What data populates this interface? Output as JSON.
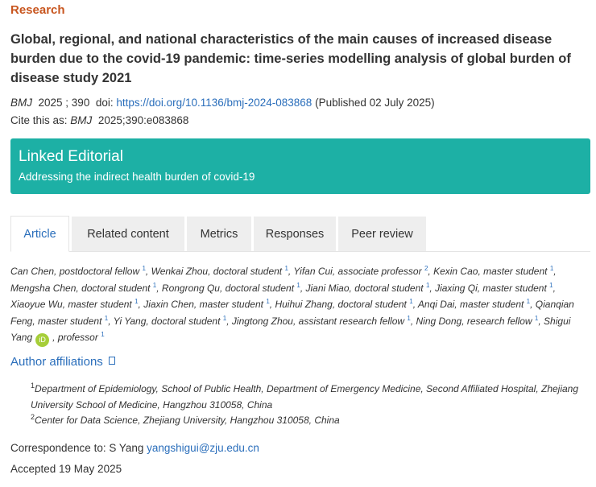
{
  "section": "Research",
  "title": "Global, regional, and national characteristics of the main causes of increased disease burden due to the covid-19 pandemic: time-series modelling analysis of global burden of disease study 2021",
  "citation": {
    "journal": "BMJ",
    "volume": "2025 ; 390",
    "doi_label": "doi:",
    "doi_url": "https://doi.org/10.1136/bmj-2024-083868",
    "published": "(Published 02 July 2025)",
    "cite_label": "Cite this as:",
    "cite_journal": "BMJ",
    "cite_ref": "2025;390:e083868"
  },
  "editorial": {
    "heading": "Linked Editorial",
    "link": "Addressing the indirect health burden of covid-19",
    "color": "#1db0a5"
  },
  "tabs": [
    {
      "label": "Article",
      "active": true
    },
    {
      "label": "Related content"
    },
    {
      "label": "Metrics"
    },
    {
      "label": "Responses"
    },
    {
      "label": "Peer review"
    }
  ],
  "authors": [
    {
      "name": "Can Chen",
      "role": "postdoctoral fellow",
      "aff": "1"
    },
    {
      "name": "Wenkai Zhou",
      "role": "doctoral student",
      "aff": "1"
    },
    {
      "name": "Yifan Cui",
      "role": "associate professor",
      "aff": "2"
    },
    {
      "name": "Kexin Cao",
      "role": "master student",
      "aff": "1"
    },
    {
      "name": "Mengsha Chen",
      "role": "doctoral student",
      "aff": "1"
    },
    {
      "name": "Rongrong Qu",
      "role": "doctoral student",
      "aff": "1"
    },
    {
      "name": "Jiani Miao",
      "role": "doctoral student",
      "aff": "1"
    },
    {
      "name": "Jiaxing Qi",
      "role": "master student",
      "aff": "1"
    },
    {
      "name": "Xiaoyue Wu",
      "role": "master student",
      "aff": "1"
    },
    {
      "name": "Jiaxin Chen",
      "role": "master student",
      "aff": "1"
    },
    {
      "name": "Huihui Zhang",
      "role": "doctoral student",
      "aff": "1"
    },
    {
      "name": "Anqi Dai",
      "role": "master student",
      "aff": "1"
    },
    {
      "name": "Qianqian Feng",
      "role": "master student",
      "aff": "1"
    },
    {
      "name": "Yi Yang",
      "role": "doctoral student",
      "aff": "1"
    },
    {
      "name": "Jingtong Zhou",
      "role": "assistant research fellow",
      "aff": "1"
    },
    {
      "name": "Ning Dong",
      "role": "research fellow",
      "aff": "1"
    },
    {
      "name": "Shigui Yang",
      "role": "professor",
      "aff": "1",
      "orcid": "iD"
    }
  ],
  "affiliations_heading": "Author affiliations",
  "affiliations_icon": "expand-square-icon",
  "affiliations": [
    {
      "num": "1",
      "text": "Department of Epidemiology, School of Public Health, Department of Emergency Medicine, Second Affiliated Hospital, Zhejiang University School of Medicine, Hangzhou 310058, China"
    },
    {
      "num": "2",
      "text": "Center for Data Science, Zhejiang University, Hangzhou 310058, China"
    }
  ],
  "correspondence": {
    "label": "Correspondence to: S Yang",
    "email": "yangshigui@zju.edu.cn"
  },
  "accepted": "Accepted 19 May 2025"
}
